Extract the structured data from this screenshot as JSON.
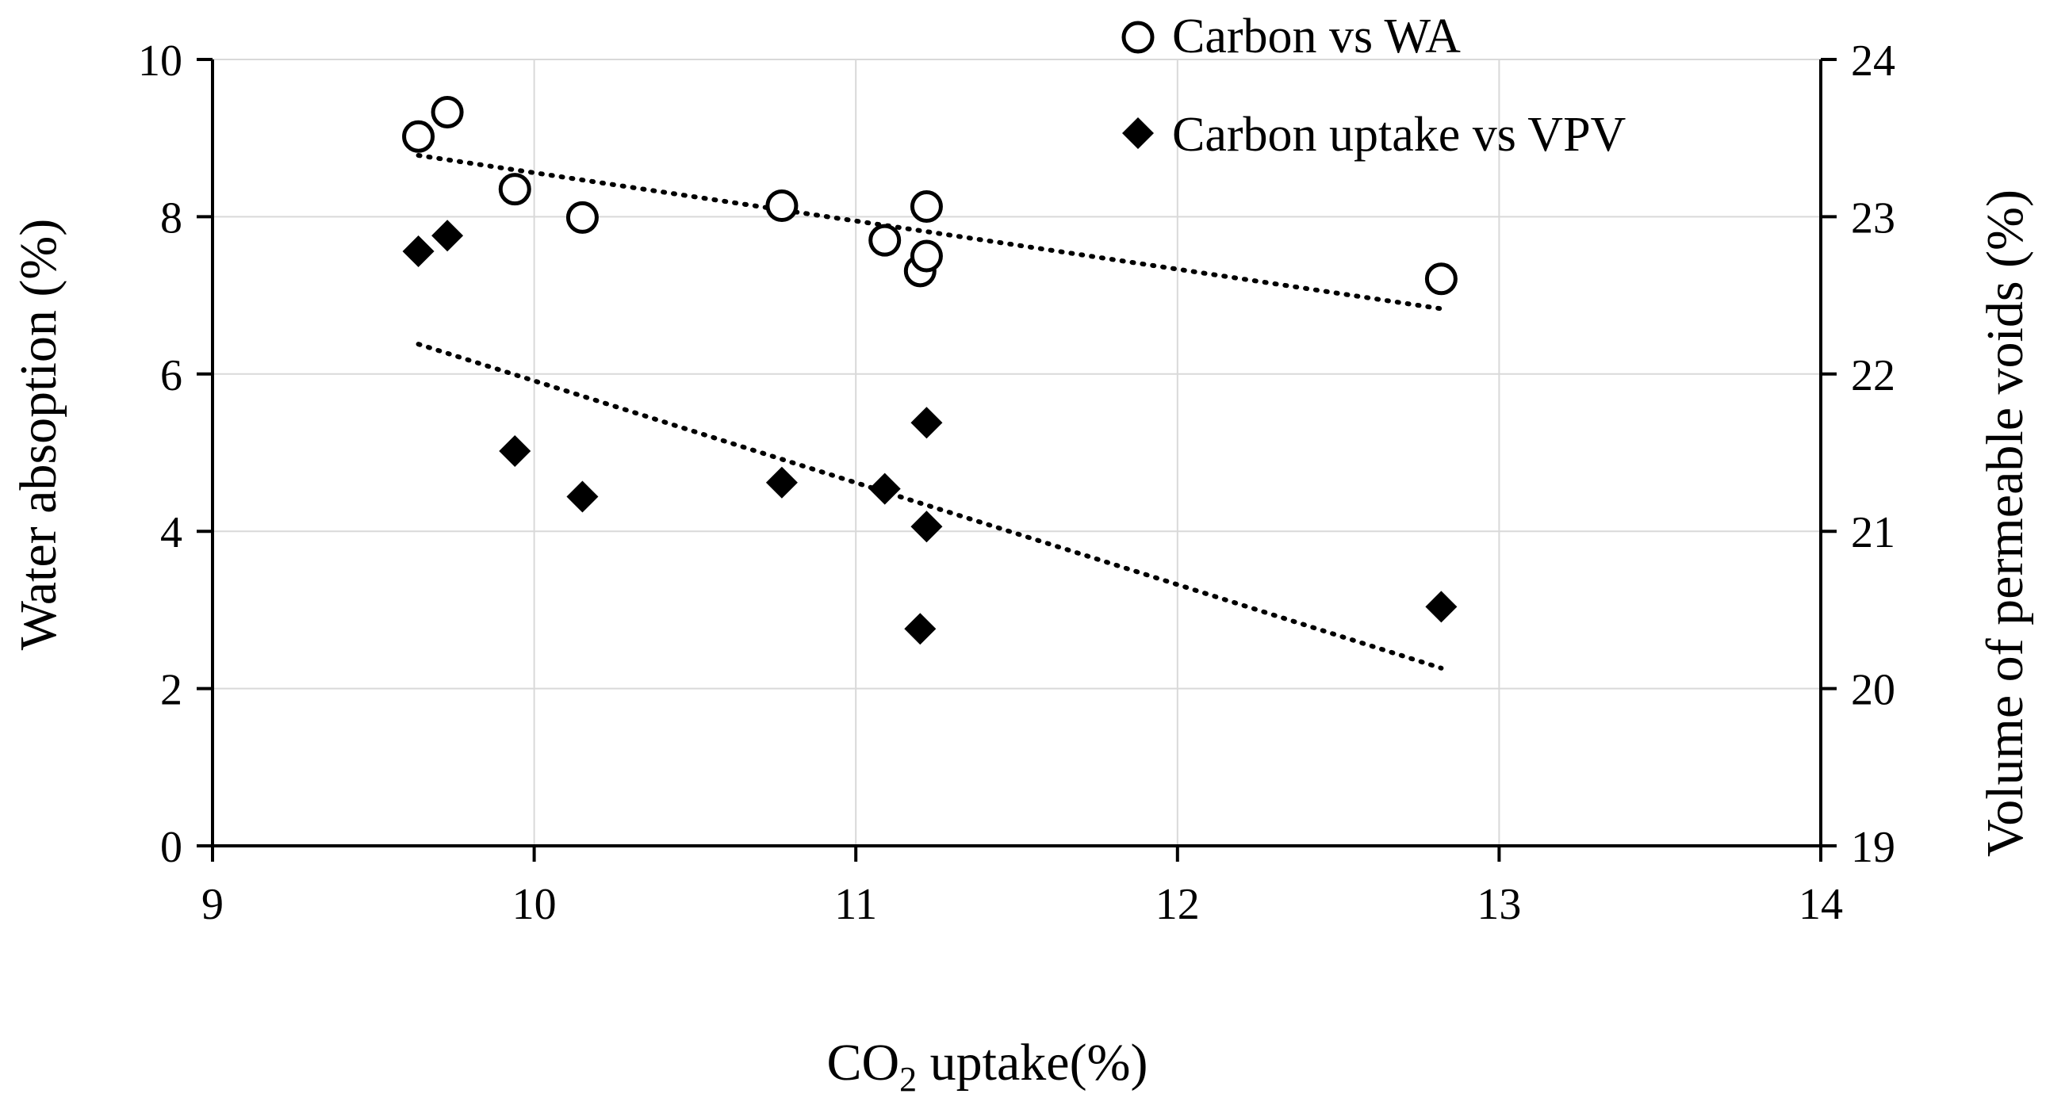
{
  "chart_data": {
    "type": "scatter",
    "xlabel_main": "CO",
    "xlabel_sub": "2",
    "xlabel_rest": " uptake(%)",
    "ylabel_left": "Water absoption (%)",
    "ylabel_right": "Volume of permeable voids (%)",
    "xlim": [
      9,
      14
    ],
    "ylim_left": [
      0,
      10
    ],
    "ylim_right": [
      19,
      24
    ],
    "x_ticks": [
      "9",
      "10",
      "11",
      "12",
      "13",
      "14"
    ],
    "y_left_ticks": [
      "0",
      "2",
      "4",
      "6",
      "8",
      "10"
    ],
    "y_right_ticks": [
      "19",
      "20",
      "21",
      "22",
      "23",
      "24"
    ],
    "grid": true,
    "legend_position": "top-right",
    "series": [
      {
        "name": "Carbon vs WA",
        "marker": "open-circle",
        "axis": "left",
        "color": "#000000",
        "points": [
          {
            "x": 9.64,
            "y": 9.02
          },
          {
            "x": 9.73,
            "y": 9.33
          },
          {
            "x": 9.94,
            "y": 8.35
          },
          {
            "x": 10.15,
            "y": 7.99
          },
          {
            "x": 10.77,
            "y": 8.14
          },
          {
            "x": 11.09,
            "y": 7.7
          },
          {
            "x": 11.2,
            "y": 7.31
          },
          {
            "x": 11.22,
            "y": 7.5
          },
          {
            "x": 11.22,
            "y": 8.13
          },
          {
            "x": 12.82,
            "y": 7.21
          }
        ],
        "trendline": {
          "x": [
            9.64,
            12.82
          ],
          "y": [
            8.78,
            6.83
          ]
        }
      },
      {
        "name": "Carbon uptake vs VPV",
        "marker": "filled-diamond",
        "axis": "right",
        "color": "#000000",
        "points": [
          {
            "x": 9.64,
            "y": 22.78
          },
          {
            "x": 9.73,
            "y": 22.88
          },
          {
            "x": 9.94,
            "y": 21.51
          },
          {
            "x": 10.15,
            "y": 21.22
          },
          {
            "x": 10.77,
            "y": 21.31
          },
          {
            "x": 11.09,
            "y": 21.27
          },
          {
            "x": 11.2,
            "y": 20.38
          },
          {
            "x": 11.22,
            "y": 21.03
          },
          {
            "x": 11.22,
            "y": 21.69
          },
          {
            "x": 12.82,
            "y": 20.52
          }
        ],
        "trendline": {
          "x": [
            9.64,
            12.82
          ],
          "y": [
            22.19,
            20.13
          ]
        }
      }
    ]
  }
}
